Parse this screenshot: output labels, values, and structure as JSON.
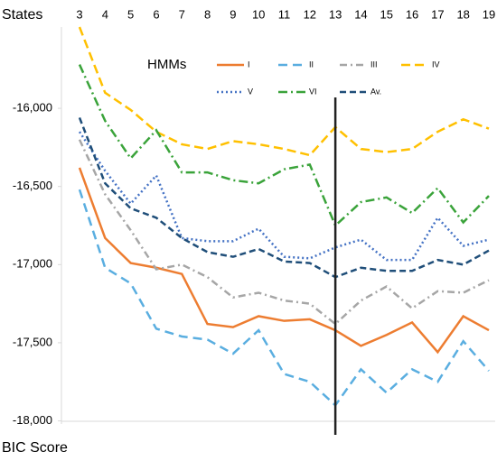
{
  "chart_data": {
    "type": "line",
    "x_label": "States",
    "y_label": "BIC Score",
    "legend_title": "HMMs",
    "x": [
      3,
      4,
      5,
      6,
      7,
      8,
      9,
      10,
      11,
      12,
      13,
      14,
      15,
      16,
      17,
      18,
      19
    ],
    "xlim": [
      3,
      19
    ],
    "xticks": [
      3,
      4,
      5,
      6,
      7,
      8,
      9,
      10,
      11,
      12,
      13,
      14,
      15,
      16,
      17,
      18,
      19
    ],
    "ylim": [
      -18020,
      -15480
    ],
    "yticks": [
      {
        "value": -16000,
        "label": "-16,000"
      },
      {
        "value": -16500,
        "label": "-16,500"
      },
      {
        "value": -17000,
        "label": "-17,000"
      },
      {
        "value": -17500,
        "label": "-17,500"
      },
      {
        "value": -18000,
        "label": "-18,000"
      }
    ],
    "vline": 13,
    "series": [
      {
        "name": "I",
        "color": "#ed7d31",
        "dash": "none",
        "values": [
          -16380,
          -16830,
          -16990,
          -17020,
          -17060,
          -17380,
          -17400,
          -17330,
          -17360,
          -17350,
          -17420,
          -17520,
          -17450,
          -17370,
          -17560,
          -17330,
          -17420
        ]
      },
      {
        "name": "II",
        "color": "#5aaee0",
        "dash": "10,6",
        "values": [
          -16520,
          -17020,
          -17120,
          -17410,
          -17460,
          -17480,
          -17570,
          -17420,
          -17700,
          -17750,
          -17900,
          -17670,
          -17820,
          -17670,
          -17750,
          -17490,
          -17680
        ]
      },
      {
        "name": "III",
        "color": "#a6a6a6",
        "dash": "8,4,2,4",
        "values": [
          -16200,
          -16550,
          -16780,
          -17030,
          -17000,
          -17080,
          -17210,
          -17180,
          -17230,
          -17250,
          -17380,
          -17230,
          -17140,
          -17280,
          -17170,
          -17180,
          -17100
        ]
      },
      {
        "name": "IV",
        "color": "#ffc000",
        "dash": "10,5",
        "values": [
          -15480,
          -15900,
          -16010,
          -16150,
          -16230,
          -16260,
          -16210,
          -16230,
          -16260,
          -16300,
          -16120,
          -16260,
          -16280,
          -16260,
          -16150,
          -16070,
          -16130
        ]
      },
      {
        "name": "V",
        "color": "#4472c4",
        "dash": "2,3",
        "values": [
          -16150,
          -16400,
          -16610,
          -16430,
          -16830,
          -16850,
          -16850,
          -16770,
          -16950,
          -16960,
          -16890,
          -16840,
          -16970,
          -16970,
          -16700,
          -16880,
          -16840
        ]
      },
      {
        "name": "VI",
        "color": "#3aa33a",
        "dash": "10,4,2,4",
        "values": [
          -15720,
          -16080,
          -16320,
          -16140,
          -16410,
          -16410,
          -16460,
          -16480,
          -16390,
          -16360,
          -16750,
          -16600,
          -16570,
          -16670,
          -16510,
          -16730,
          -16560
        ]
      },
      {
        "name": "Av.",
        "color": "#1f4e79",
        "dash": "7,4",
        "values": [
          -16060,
          -16480,
          -16640,
          -16700,
          -16830,
          -16920,
          -16950,
          -16900,
          -16980,
          -16990,
          -17080,
          -17020,
          -17040,
          -17040,
          -16970,
          -17000,
          -16910
        ]
      }
    ]
  }
}
